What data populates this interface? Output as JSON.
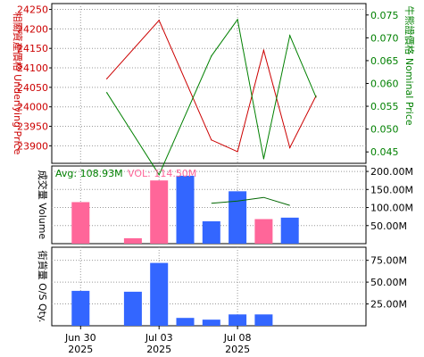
{
  "chart_data": [
    {
      "type": "line",
      "panel": "price",
      "x": [
        "Jun 27",
        "Jun 30",
        "Jul 01",
        "Jul 02",
        "Jul 03",
        "Jul 04",
        "Jul 07",
        "Jul 08",
        "Jul 09",
        "Jul 10",
        "Jul 11"
      ],
      "series": [
        {
          "name": "相關資產價格 Underlying Price",
          "color": "#cc0000",
          "axis": "left",
          "points": [
            {
              "x": "Jul 01",
              "y": 24072
            },
            {
              "x": "Jul 03",
              "y": 24222
            },
            {
              "x": "Jul 07",
              "y": 23915
            },
            {
              "x": "Jul 08",
              "y": 23885
            },
            {
              "x": "Jul 09",
              "y": 24145
            },
            {
              "x": "Jul 10",
              "y": 23895
            },
            {
              "x": "Jul 11",
              "y": 24028
            }
          ]
        },
        {
          "name": "牛熊證價格 Nominal Price",
          "color": "#008000",
          "axis": "right",
          "points": [
            {
              "x": "Jul 01",
              "y": 0.058
            },
            {
              "x": "Jul 03",
              "y": 0.04
            },
            {
              "x": "Jul 07",
              "y": 0.066
            },
            {
              "x": "Jul 08",
              "y": 0.074
            },
            {
              "x": "Jul 09",
              "y": 0.0435
            },
            {
              "x": "Jul 10",
              "y": 0.0705
            },
            {
              "x": "Jul 11",
              "y": 0.057
            }
          ]
        }
      ],
      "left_axis": {
        "label": "相關資產價格 Underlying Price",
        "ticks": [
          23900,
          23950,
          24000,
          24050,
          24100,
          24150,
          24200,
          24250
        ],
        "range": [
          23855,
          24265
        ]
      },
      "right_axis": {
        "label": "牛熊證價格 Nominal Price",
        "ticks": [
          0.045,
          0.05,
          0.055,
          0.06,
          0.065,
          0.07,
          0.075
        ],
        "tick_labels": [
          "0.045",
          "0.050",
          "0.055",
          "0.060",
          "0.065",
          "0.070",
          "0.075"
        ],
        "range": [
          0.0425,
          0.0775
        ]
      },
      "grid": true
    },
    {
      "type": "bar",
      "panel": "volume",
      "avg_label": "Avg: 108.93M",
      "vol_label": "VOL: 114.50M",
      "avg_color": "#008000",
      "vol_color": "#ff6699",
      "up_color": "#3366ff",
      "down_color": "#ff6699",
      "bars": [
        {
          "x": "Jun 30",
          "value": 115,
          "direction": "down"
        },
        {
          "x": "Jul 02",
          "value": 15,
          "direction": "down"
        },
        {
          "x": "Jul 03",
          "value": 175,
          "direction": "down"
        },
        {
          "x": "Jul 04",
          "value": 188,
          "direction": "up"
        },
        {
          "x": "Jul 07",
          "value": 62,
          "direction": "up"
        },
        {
          "x": "Jul 08",
          "value": 145,
          "direction": "up"
        },
        {
          "x": "Jul 09",
          "value": 68,
          "direction": "down"
        },
        {
          "x": "Jul 10",
          "value": 72,
          "direction": "up"
        }
      ],
      "moving_average": [
        {
          "x": "Jul 07",
          "y": 112
        },
        {
          "x": "Jul 08",
          "y": 118
        },
        {
          "x": "Jul 09",
          "y": 128
        },
        {
          "x": "Jul 10",
          "y": 106
        }
      ],
      "left_axis_label": "成交量 Volume",
      "ticks": [
        50,
        100,
        150,
        200
      ],
      "tick_labels": [
        "50.00M",
        "100.00M",
        "150.00M",
        "200.00M"
      ],
      "range": [
        0,
        215
      ],
      "grid": true
    },
    {
      "type": "bar",
      "panel": "outstanding",
      "bar_color": "#3366ff",
      "bars": [
        {
          "x": "Jun 30",
          "value": 40
        },
        {
          "x": "Jul 02",
          "value": 39
        },
        {
          "x": "Jul 03",
          "value": 72
        },
        {
          "x": "Jul 04",
          "value": 9
        },
        {
          "x": "Jul 07",
          "value": 7
        },
        {
          "x": "Jul 08",
          "value": 13
        },
        {
          "x": "Jul 09",
          "value": 13
        }
      ],
      "left_axis_label": "街貨量 O/S Qty.",
      "ticks": [
        25,
        50,
        75
      ],
      "tick_labels": [
        "25.00M",
        "50.00M",
        "75.00M"
      ],
      "range": [
        0,
        90
      ],
      "grid": true
    }
  ],
  "x_axis": {
    "ticks": [
      {
        "x": "Jun 30",
        "line1": "Jun 30",
        "line2": "2025"
      },
      {
        "x": "Jul 03",
        "line1": "Jul 03",
        "line2": "2025"
      },
      {
        "x": "Jul 08",
        "line1": "Jul 08",
        "line2": "2025"
      }
    ]
  }
}
